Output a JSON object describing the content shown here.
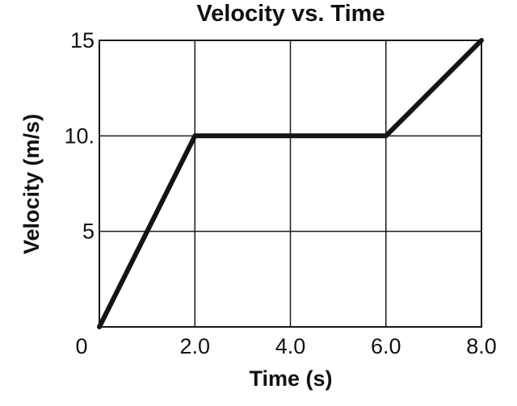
{
  "chart_data": {
    "type": "line",
    "title": "Velocity vs. Time",
    "xlabel": "Time (s)",
    "ylabel": "Velocity (m/s)",
    "xlim": [
      0,
      8
    ],
    "ylim": [
      0,
      15
    ],
    "grid": true,
    "x_ticks": [
      0,
      2,
      4,
      6,
      8
    ],
    "x_tick_labels": [
      "0",
      "2.0",
      "4.0",
      "6.0",
      "8.0"
    ],
    "y_ticks": [
      5,
      10,
      15
    ],
    "y_tick_labels": [
      "5",
      "10.",
      "15"
    ],
    "series": [
      {
        "x": [
          0,
          2,
          6,
          8
        ],
        "y": [
          0,
          10,
          10,
          15
        ]
      }
    ]
  }
}
